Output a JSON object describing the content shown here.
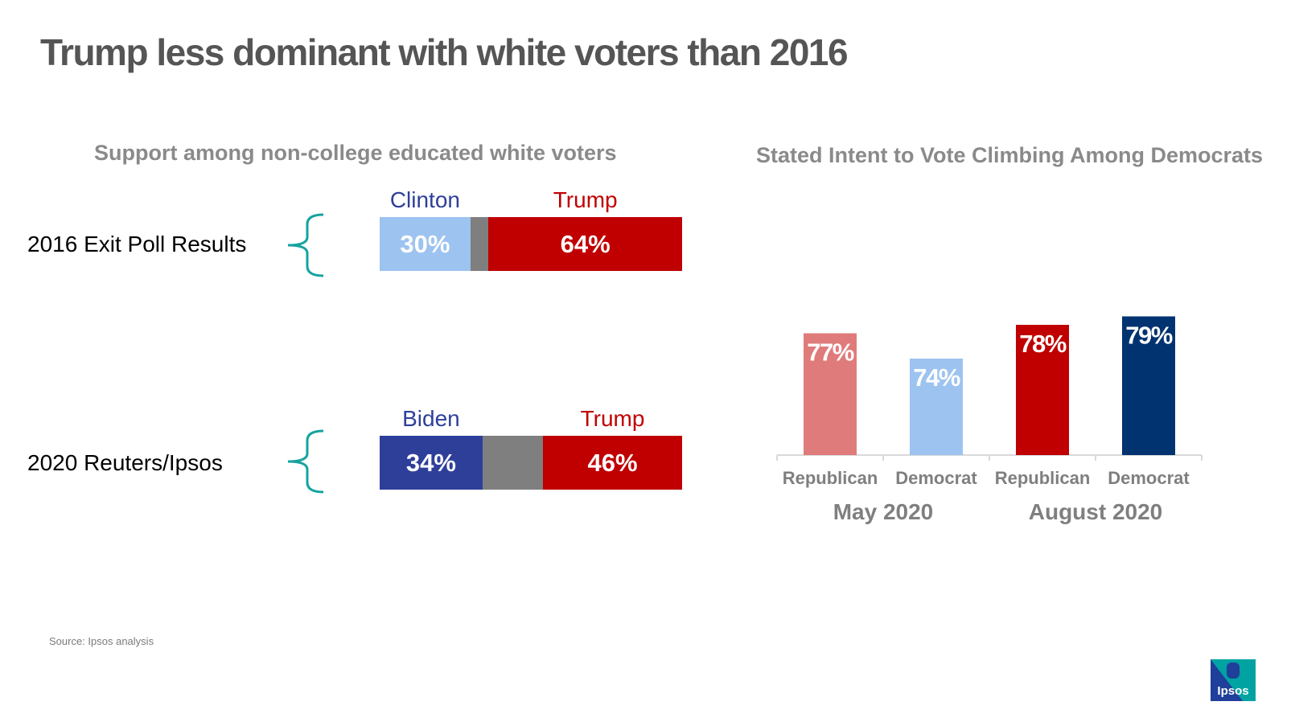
{
  "title": "Trump less dominant with white voters than 2016",
  "left_panel": {
    "subtitle": "Support among non-college educated white voters",
    "rows": [
      {
        "label": "2016 Exit Poll Results",
        "candidates": [
          {
            "name": "Clinton",
            "value": 30,
            "display": "30%",
            "color": "#9dc3f0"
          },
          {
            "name": "",
            "value": 6,
            "display": "",
            "color": "#7f7f7f"
          },
          {
            "name": "Trump",
            "value": 64,
            "display": "64%",
            "color": "#c00000"
          }
        ]
      },
      {
        "label": "2020 Reuters/Ipsos",
        "candidates": [
          {
            "name": "Biden",
            "value": 34,
            "display": "34%",
            "color": "#2e3f9a"
          },
          {
            "name": "",
            "value": 20,
            "display": "",
            "color": "#7f7f7f"
          },
          {
            "name": "Trump",
            "value": 46,
            "display": "46%",
            "color": "#c00000"
          }
        ]
      }
    ]
  },
  "right_panel": {
    "subtitle": "Stated Intent to Vote Climbing Among Democrats"
  },
  "chart_data": {
    "type": "bar",
    "title": "Stated Intent to Vote Climbing Among Democrats",
    "categories": [
      "Republican",
      "Democrat",
      "Republican",
      "Democrat"
    ],
    "groups": [
      {
        "label": "May 2020",
        "indices": [
          0,
          1
        ]
      },
      {
        "label": "August 2020",
        "indices": [
          2,
          3
        ]
      }
    ],
    "values": [
      77,
      74,
      78,
      79
    ],
    "value_labels": [
      "77%",
      "74%",
      "78%",
      "79%"
    ],
    "colors": [
      "#e07b7b",
      "#9dc3f0",
      "#c00000",
      "#003370"
    ],
    "ylim": [
      60,
      80
    ],
    "grid": false,
    "legend": "none"
  },
  "source": "Source: Ipsos analysis",
  "logo": {
    "text": "Ipsos",
    "icon": "ipsos-logo",
    "color": "#1f3f9a",
    "accent": "#00a3a1"
  },
  "colors": {
    "bracket": "#14a3a0"
  }
}
